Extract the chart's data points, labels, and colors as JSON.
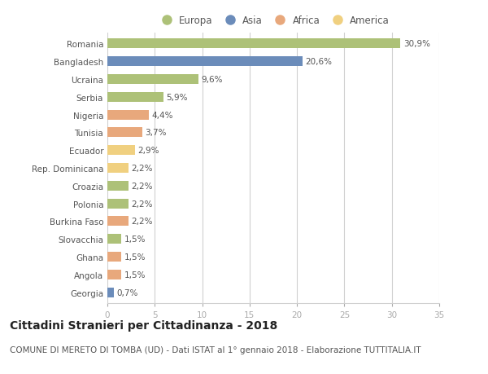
{
  "countries": [
    "Romania",
    "Bangladesh",
    "Ucraina",
    "Serbia",
    "Nigeria",
    "Tunisia",
    "Ecuador",
    "Rep. Dominicana",
    "Croazia",
    "Polonia",
    "Burkina Faso",
    "Slovacchia",
    "Ghana",
    "Angola",
    "Georgia"
  ],
  "values": [
    30.9,
    20.6,
    9.6,
    5.9,
    4.4,
    3.7,
    2.9,
    2.2,
    2.2,
    2.2,
    2.2,
    1.5,
    1.5,
    1.5,
    0.7
  ],
  "labels": [
    "30,9%",
    "20,6%",
    "9,6%",
    "5,9%",
    "4,4%",
    "3,7%",
    "2,9%",
    "2,2%",
    "2,2%",
    "2,2%",
    "2,2%",
    "1,5%",
    "1,5%",
    "1,5%",
    "0,7%"
  ],
  "continents": [
    "Europa",
    "Asia",
    "Europa",
    "Europa",
    "Africa",
    "Africa",
    "America",
    "America",
    "Europa",
    "Europa",
    "Africa",
    "Europa",
    "Africa",
    "Africa",
    "Asia"
  ],
  "continent_colors": {
    "Europa": "#adc178",
    "Asia": "#6b8cba",
    "Africa": "#e8a87c",
    "America": "#f0d080"
  },
  "legend_order": [
    "Europa",
    "Asia",
    "Africa",
    "America"
  ],
  "xlim": [
    0,
    35
  ],
  "xticks": [
    0,
    5,
    10,
    15,
    20,
    25,
    30,
    35
  ],
  "title": "Cittadini Stranieri per Cittadinanza - 2018",
  "subtitle": "COMUNE DI MERETO DI TOMBA (UD) - Dati ISTAT al 1° gennaio 2018 - Elaborazione TUTTITALIA.IT",
  "background_color": "#ffffff",
  "grid_color": "#d0d0d0",
  "bar_height": 0.55,
  "title_fontsize": 10,
  "subtitle_fontsize": 7.5,
  "label_fontsize": 7.5,
  "tick_fontsize": 7.5,
  "legend_fontsize": 8.5
}
